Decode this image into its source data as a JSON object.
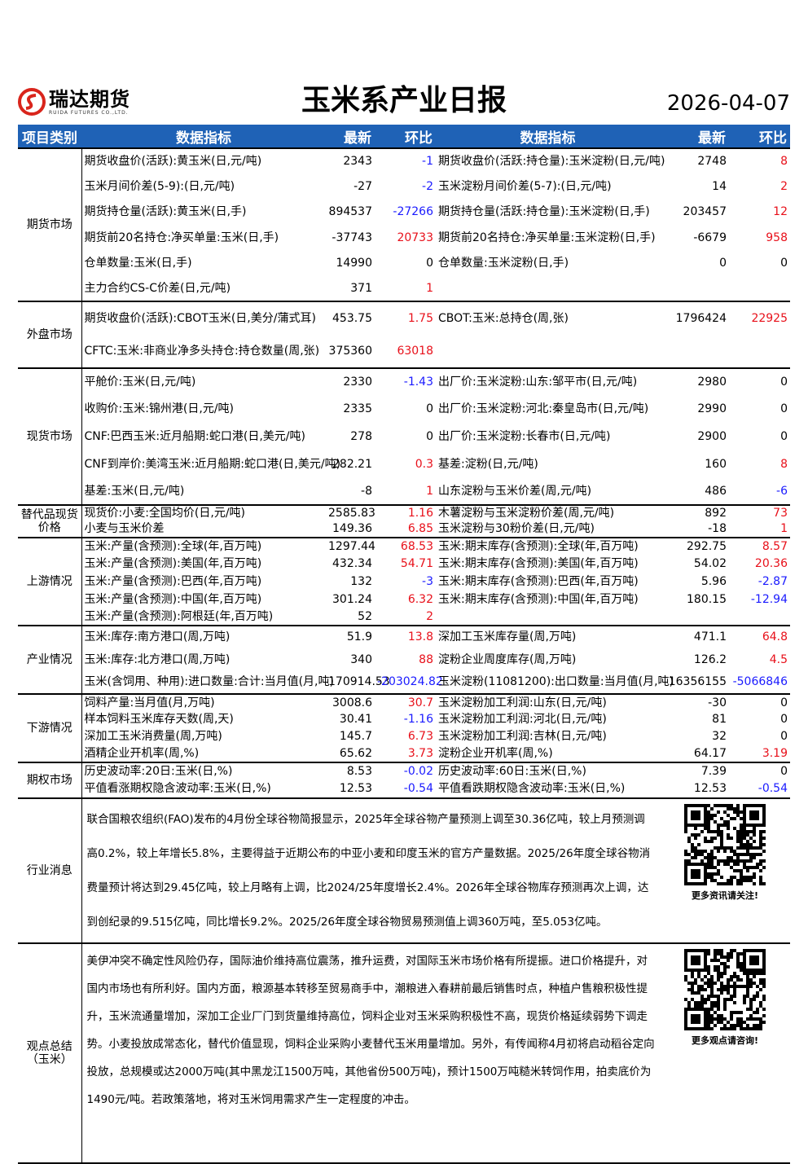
{
  "header": {
    "logo": "瑞达期货",
    "logo_sub": "RUIDA FUTURES CO.,LTD.",
    "title": "玉米系产业日报",
    "date": "2026-04-07"
  },
  "table": {
    "columns": [
      "项目类别",
      "数据指标",
      "最新",
      "环比",
      "数据指标",
      "最新",
      "环比"
    ],
    "sections": [
      {
        "category": "期货市场",
        "rows": [
          [
            "期货收盘价(活跃):黄玉米(日,元/吨)",
            "2343",
            "-1",
            "期货收盘价(活跃:持仓量):玉米淀粉(日,元/吨)",
            "2748",
            "8"
          ],
          [
            "玉米月间价差(5-9):(日,元/吨)",
            "-27",
            "-2",
            "玉米淀粉月间价差(5-7):(日,元/吨)",
            "14",
            "2"
          ],
          [
            "期货持仓量(活跃):黄玉米(日,手)",
            "894537",
            "-27266",
            "期货持仓量(活跃:持仓量):玉米淀粉(日,手)",
            "203457",
            "12"
          ],
          [
            "期货前20名持仓:净买单量:玉米(日,手)",
            "-37743",
            "20733",
            "期货前20名持仓:净买单量:玉米淀粉(日,手)",
            "-6679",
            "958"
          ],
          [
            "仓单数量:玉米(日,手)",
            "14990",
            "0",
            "仓单数量:玉米淀粉(日,手)",
            "0",
            "0"
          ],
          [
            "主力合约CS-C价差(日,元/吨)",
            "371",
            "1"
          ]
        ]
      },
      {
        "category": "外盘市场",
        "rows": [
          [
            "期货收盘价(活跃):CBOT玉米(日,美分/蒲式耳)",
            "453.75",
            "1.75",
            "CBOT:玉米:总持仓(周,张)",
            "1796424",
            "22925"
          ],
          [
            "CFTC:玉米:非商业净多头持仓:持仓数量(周,张)",
            "375360",
            "63018"
          ]
        ]
      },
      {
        "category": "现货市场",
        "rows": [
          [
            "平舱价:玉米(日,元/吨)",
            "2330",
            "-1.43",
            "出厂价:玉米淀粉:山东:邹平市(日,元/吨)",
            "2980",
            "0"
          ],
          [
            "收购价:玉米:锦州港(日,元/吨)",
            "2335",
            "0",
            "出厂价:玉米淀粉:河北:秦皇岛市(日,元/吨)",
            "2990",
            "0"
          ],
          [
            "CNF:巴西玉米:近月船期:蛇口港(日,美元/吨)",
            "278",
            "0",
            "出厂价:玉米淀粉:长春市(日,元/吨)",
            "2900",
            "0"
          ],
          [
            "CNF到岸价:美湾玉米:近月船期:蛇口港(日,美元/吨)",
            "282.21",
            "0.3",
            "基差:淀粉(日,元/吨)",
            "160",
            "8"
          ],
          [
            "基差:玉米(日,元/吨)",
            "-8",
            "1",
            "山东淀粉与玉米价差(周,元/吨)",
            "486",
            "-6"
          ]
        ]
      },
      {
        "category": "替代品现货价格",
        "rows": [
          [
            "现货价:小麦:全国均价(日,元/吨)",
            "2585.83",
            "1.16",
            "木薯淀粉与玉米淀粉价差(周,元/吨)",
            "892",
            "73"
          ],
          [
            "小麦与玉米价差",
            "149.36",
            "6.85",
            "玉米淀粉与30粉价差(日,元/吨)",
            "-18",
            "1"
          ]
        ]
      },
      {
        "category": "上游情况",
        "rows": [
          [
            "玉米:产量(含预测):全球(年,百万吨)",
            "1297.44",
            "68.53",
            "玉米:期末库存(含预测):全球(年,百万吨)",
            "292.75",
            "8.57"
          ],
          [
            "玉米:产量(含预测):美国(年,百万吨)",
            "432.34",
            "54.71",
            "玉米:期末库存(含预测):美国(年,百万吨)",
            "54.02",
            "20.36"
          ],
          [
            "玉米:产量(含预测):巴西(年,百万吨)",
            "132",
            "-3",
            "玉米:期末库存(含预测):巴西(年,百万吨)",
            "5.96",
            "-2.87"
          ],
          [
            "玉米:产量(含预测):中国(年,百万吨)",
            "301.24",
            "6.32",
            "玉米:期末库存(含预测):中国(年,百万吨)",
            "180.15",
            "-12.94"
          ],
          [
            "玉米:产量(含预测):阿根廷(年,百万吨)",
            "52",
            "2"
          ]
        ]
      },
      {
        "category": "产业情况",
        "rows": [
          [
            "玉米:库存:南方港口(周,万吨)",
            "51.9",
            "13.8",
            "深加工玉米库存量(周,万吨)",
            "471.1",
            "64.8"
          ],
          [
            "玉米:库存:北方港口(周,万吨)",
            "340",
            "88",
            "淀粉企业周度库存(周,万吨)",
            "126.2",
            "4.5"
          ],
          [
            "玉米(含饲用、种用):进口数量:合计:当月值(月,吨)",
            "170914.53",
            "-203024.82",
            "玉米淀粉(11081200):出口数量:当月值(月,吨)",
            "16356155",
            "-5066846"
          ]
        ]
      },
      {
        "category": "下游情况",
        "rows": [
          [
            "饲料产量:当月值(月,万吨)",
            "3008.6",
            "30.7",
            "玉米淀粉加工利润:山东(日,元/吨)",
            "-30",
            "0"
          ],
          [
            "样本饲料玉米库存天数(周,天)",
            "30.41",
            "-1.16",
            "玉米淀粉加工利润:河北(日,元/吨)",
            "81",
            "0"
          ],
          [
            "深加工玉米消费量(周,万吨)",
            "145.7",
            "6.73",
            "玉米淀粉加工利润:吉林(日,元/吨)",
            "32",
            "0"
          ],
          [
            "酒精企业开机率(周,%)",
            "65.62",
            "3.73",
            "淀粉企业开机率(周,%)",
            "64.17",
            "3.19"
          ]
        ]
      },
      {
        "category": "期权市场",
        "rows": [
          [
            "历史波动率:20日:玉米(日,%)",
            "8.53",
            "-0.02",
            "历史波动率:60日:玉米(日,%)",
            "7.39",
            "0"
          ],
          [
            "平值看涨期权隐含波动率:玉米(日,%)",
            "12.53",
            "-0.54",
            "平值看跌期权隐含波动率:玉米(日,%)",
            "12.53",
            "-0.54"
          ]
        ]
      }
    ]
  },
  "news": {
    "label": "行业消息",
    "text": "联合国粮农组织(FAO)发布的4月份全球谷物简报显示，2025年全球谷物产量预测上调至30.36亿吨，较上月预测调高0.2%，较上年增长5.8%，主要得益于近期公布的中亚小麦和印度玉米的官方产量数据。2025/26年度全球谷物消费量预计将达到29.45亿吨，较上月略有上调，比2024/25年度增长2.4%。2026年全球谷物库存预测再次上调，达到创纪录的9.515亿吨，同比增长9.2%。2025/26年度全球谷物贸易预测值上调360万吨，至5.053亿吨。",
    "qr_caption": "更多资讯请关注!"
  },
  "summary": {
    "label": "观点总结（玉米）",
    "text": "美伊冲突不确定性风险仍存，国际油价维持高位震荡，推升运费，对国际玉米市场价格有所提振。进口价格提升，对国内市场也有所利好。国内方面，粮源基本转移至贸易商手中，潮粮进入春耕前最后销售时点，种植户售粮积极性提升，玉米流通量增加，深加工企业厂门到货量维持高位，饲料企业对玉米采购积极性不高，现货价格延续弱势下调走势。小麦投放成常态化，替代价值显现，饲料企业采购小麦替代玉米用量增加。另外，有传闻称4月初将启动稻谷定向投放，总规模或达2000万吨(其中黑龙江1500万吨，其他省份500万吨)，预计1500万吨糙米转饲作用，拍卖底价为1490元/吨。若政策落地，将对玉米饲用需求产生一定程度的冲击。",
    "qr_caption": "更多观点请咨询!"
  }
}
